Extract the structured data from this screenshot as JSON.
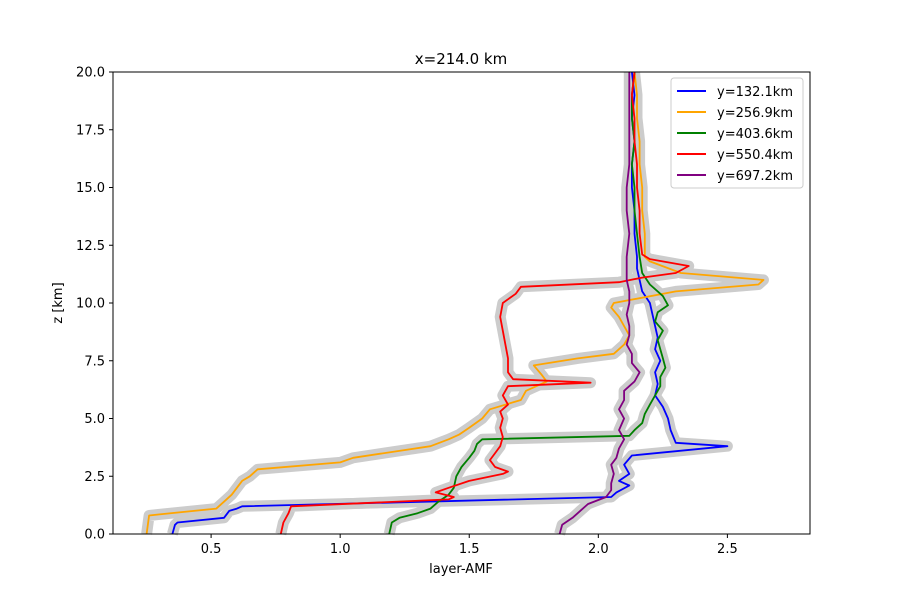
{
  "chart_data": {
    "type": "line",
    "title": "x=214.0 km",
    "xlabel": "layer-AMF",
    "ylabel": "z [km]",
    "xlim": [
      0.12,
      2.82
    ],
    "ylim": [
      0,
      20
    ],
    "xticks": [
      0.5,
      1.0,
      1.5,
      2.0,
      2.5
    ],
    "xtick_labels": [
      "0.5",
      "1.0",
      "1.5",
      "2.0",
      "2.5"
    ],
    "yticks": [
      0,
      2.5,
      5,
      7.5,
      10,
      12.5,
      15,
      17.5,
      20
    ],
    "ytick_labels": [
      "0.0",
      "2.5",
      "5.0",
      "7.5",
      "10.0",
      "12.5",
      "15.0",
      "17.5",
      "20.0"
    ],
    "grid": false,
    "legend_position": "top-right",
    "uncertainty_band_color": "#cccccc",
    "series": [
      {
        "name": "y=132.1km",
        "color": "#0000ff",
        "points": [
          [
            0.35,
            0.0
          ],
          [
            0.36,
            0.4
          ],
          [
            0.37,
            0.5
          ],
          [
            0.55,
            0.7
          ],
          [
            0.57,
            1.0
          ],
          [
            0.6,
            1.1
          ],
          [
            0.62,
            1.2
          ],
          [
            2.05,
            1.6
          ],
          [
            2.07,
            1.8
          ],
          [
            2.12,
            2.1
          ],
          [
            2.08,
            2.3
          ],
          [
            2.12,
            2.6
          ],
          [
            2.1,
            3.0
          ],
          [
            2.13,
            3.4
          ],
          [
            2.5,
            3.8
          ],
          [
            2.3,
            3.95
          ],
          [
            2.28,
            4.5
          ],
          [
            2.27,
            5.0
          ],
          [
            2.25,
            5.5
          ],
          [
            2.22,
            6.0
          ],
          [
            2.23,
            6.5
          ],
          [
            2.22,
            7.0
          ],
          [
            2.24,
            7.5
          ],
          [
            2.22,
            8.0
          ],
          [
            2.23,
            8.5
          ],
          [
            2.22,
            9.0
          ],
          [
            2.21,
            9.5
          ],
          [
            2.2,
            10.0
          ],
          [
            2.17,
            10.5
          ],
          [
            2.16,
            11.0
          ],
          [
            2.15,
            11.5
          ],
          [
            2.15,
            12.0
          ],
          [
            2.14,
            13.0
          ],
          [
            2.14,
            14.0
          ],
          [
            2.13,
            15.0
          ],
          [
            2.13,
            16.0
          ],
          [
            2.14,
            17.0
          ],
          [
            2.13,
            18.0
          ],
          [
            2.14,
            19.0
          ],
          [
            2.13,
            20.0
          ]
        ]
      },
      {
        "name": "y=256.9km",
        "color": "#ffa500",
        "points": [
          [
            0.25,
            0.0
          ],
          [
            0.26,
            0.8
          ],
          [
            0.3,
            0.85
          ],
          [
            0.52,
            1.1
          ],
          [
            0.55,
            1.4
          ],
          [
            0.58,
            1.7
          ],
          [
            0.6,
            2.0
          ],
          [
            0.62,
            2.3
          ],
          [
            0.65,
            2.5
          ],
          [
            0.68,
            2.8
          ],
          [
            1.0,
            3.1
          ],
          [
            1.05,
            3.3
          ],
          [
            1.35,
            3.8
          ],
          [
            1.42,
            4.1
          ],
          [
            1.46,
            4.3
          ],
          [
            1.5,
            4.6
          ],
          [
            1.55,
            5.0
          ],
          [
            1.58,
            5.4
          ],
          [
            1.7,
            5.8
          ],
          [
            1.72,
            6.2
          ],
          [
            1.8,
            6.6
          ],
          [
            1.78,
            6.9
          ],
          [
            1.75,
            7.3
          ],
          [
            1.92,
            7.6
          ],
          [
            2.06,
            7.8
          ],
          [
            2.1,
            8.2
          ],
          [
            2.12,
            8.6
          ],
          [
            2.1,
            9.0
          ],
          [
            2.08,
            9.4
          ],
          [
            2.05,
            9.8
          ],
          [
            2.06,
            10.0
          ],
          [
            2.3,
            10.5
          ],
          [
            2.62,
            10.8
          ],
          [
            2.64,
            11.0
          ],
          [
            2.32,
            11.3
          ],
          [
            2.2,
            11.8
          ],
          [
            2.18,
            12.0
          ],
          [
            2.18,
            13.0
          ],
          [
            2.17,
            14.0
          ],
          [
            2.17,
            15.0
          ],
          [
            2.16,
            16.0
          ],
          [
            2.16,
            17.0
          ],
          [
            2.15,
            18.0
          ],
          [
            2.15,
            19.0
          ],
          [
            2.14,
            20.0
          ]
        ]
      },
      {
        "name": "y=403.6km",
        "color": "#008000",
        "points": [
          [
            1.19,
            0.0
          ],
          [
            1.2,
            0.5
          ],
          [
            1.23,
            0.7
          ],
          [
            1.3,
            0.9
          ],
          [
            1.35,
            1.1
          ],
          [
            1.38,
            1.4
          ],
          [
            1.42,
            1.7
          ],
          [
            1.44,
            2.0
          ],
          [
            1.45,
            2.5
          ],
          [
            1.47,
            2.9
          ],
          [
            1.5,
            3.3
          ],
          [
            1.52,
            3.6
          ],
          [
            1.53,
            3.9
          ],
          [
            1.55,
            4.1
          ],
          [
            2.12,
            4.25
          ],
          [
            2.14,
            4.5
          ],
          [
            2.17,
            4.8
          ],
          [
            2.18,
            5.2
          ],
          [
            2.2,
            5.6
          ],
          [
            2.22,
            6.0
          ],
          [
            2.24,
            6.4
          ],
          [
            2.24,
            6.8
          ],
          [
            2.26,
            7.2
          ],
          [
            2.25,
            7.6
          ],
          [
            2.24,
            8.0
          ],
          [
            2.23,
            8.4
          ],
          [
            2.25,
            8.8
          ],
          [
            2.22,
            9.2
          ],
          [
            2.23,
            9.6
          ],
          [
            2.27,
            9.9
          ],
          [
            2.25,
            10.3
          ],
          [
            2.2,
            10.8
          ],
          [
            2.17,
            11.3
          ],
          [
            2.16,
            12.0
          ],
          [
            2.15,
            13.0
          ],
          [
            2.14,
            14.0
          ],
          [
            2.14,
            15.0
          ],
          [
            2.13,
            16.0
          ],
          [
            2.14,
            17.0
          ],
          [
            2.13,
            18.0
          ],
          [
            2.13,
            19.0
          ],
          [
            2.14,
            20.0
          ]
        ]
      },
      {
        "name": "y=550.4km",
        "color": "#ff0000",
        "points": [
          [
            0.77,
            0.0
          ],
          [
            0.78,
            0.5
          ],
          [
            0.8,
            0.9
          ],
          [
            0.81,
            1.2
          ],
          [
            1.42,
            1.5
          ],
          [
            1.44,
            1.6
          ],
          [
            1.37,
            1.8
          ],
          [
            1.42,
            2.0
          ],
          [
            1.5,
            2.3
          ],
          [
            1.63,
            2.6
          ],
          [
            1.65,
            2.7
          ],
          [
            1.6,
            2.9
          ],
          [
            1.58,
            3.2
          ],
          [
            1.6,
            3.5
          ],
          [
            1.62,
            3.8
          ],
          [
            1.63,
            4.2
          ],
          [
            1.62,
            4.6
          ],
          [
            1.63,
            5.0
          ],
          [
            1.62,
            5.3
          ],
          [
            1.65,
            5.6
          ],
          [
            1.63,
            6.0
          ],
          [
            1.65,
            6.4
          ],
          [
            1.97,
            6.55
          ],
          [
            1.67,
            6.7
          ],
          [
            1.65,
            7.0
          ],
          [
            1.65,
            7.6
          ],
          [
            1.64,
            8.2
          ],
          [
            1.63,
            8.8
          ],
          [
            1.62,
            9.4
          ],
          [
            1.63,
            10.0
          ],
          [
            1.68,
            10.4
          ],
          [
            1.7,
            10.7
          ],
          [
            2.08,
            10.9
          ],
          [
            2.17,
            11.1
          ],
          [
            2.3,
            11.3
          ],
          [
            2.35,
            11.6
          ],
          [
            2.2,
            11.9
          ],
          [
            2.17,
            12.1
          ],
          [
            2.16,
            13.0
          ],
          [
            2.16,
            14.0
          ],
          [
            2.15,
            15.0
          ],
          [
            2.15,
            16.0
          ],
          [
            2.14,
            17.0
          ],
          [
            2.14,
            18.0
          ],
          [
            2.13,
            19.0
          ],
          [
            2.14,
            20.0
          ]
        ]
      },
      {
        "name": "y=697.2km",
        "color": "#800080",
        "points": [
          [
            1.85,
            0.0
          ],
          [
            1.86,
            0.4
          ],
          [
            1.9,
            0.7
          ],
          [
            1.93,
            1.0
          ],
          [
            1.96,
            1.3
          ],
          [
            2.03,
            1.6
          ],
          [
            2.05,
            1.9
          ],
          [
            2.05,
            2.2
          ],
          [
            2.06,
            2.6
          ],
          [
            2.05,
            3.0
          ],
          [
            2.07,
            3.3
          ],
          [
            2.08,
            3.7
          ],
          [
            2.1,
            4.1
          ],
          [
            2.08,
            4.5
          ],
          [
            2.1,
            5.0
          ],
          [
            2.08,
            5.4
          ],
          [
            2.1,
            5.8
          ],
          [
            2.1,
            6.2
          ],
          [
            2.14,
            6.6
          ],
          [
            2.16,
            7.0
          ],
          [
            2.13,
            7.4
          ],
          [
            2.13,
            7.8
          ],
          [
            2.11,
            8.2
          ],
          [
            2.12,
            8.6
          ],
          [
            2.12,
            9.0
          ],
          [
            2.11,
            9.5
          ],
          [
            2.12,
            10.0
          ],
          [
            2.12,
            10.5
          ],
          [
            2.11,
            11.0
          ],
          [
            2.11,
            11.5
          ],
          [
            2.11,
            12.0
          ],
          [
            2.12,
            13.0
          ],
          [
            2.11,
            14.0
          ],
          [
            2.11,
            15.0
          ],
          [
            2.12,
            16.0
          ],
          [
            2.12,
            17.0
          ],
          [
            2.12,
            18.0
          ],
          [
            2.12,
            19.0
          ],
          [
            2.12,
            20.0
          ]
        ]
      }
    ]
  }
}
